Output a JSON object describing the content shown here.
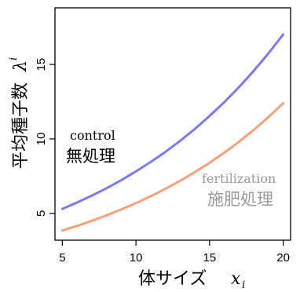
{
  "chart_data": {
    "type": "line",
    "xlabel": "体サイズ",
    "xlabel_var": "x",
    "xlabel_sub": "i",
    "ylabel": "平均種子数",
    "ylabel_var": "λ",
    "ylabel_sub": "i",
    "xlim": [
      4.5,
      20.5
    ],
    "ylim": [
      3.2,
      18.8
    ],
    "xticks": [
      5,
      10,
      15,
      20
    ],
    "xtick_labels": [
      "5",
      "10",
      "15",
      "20"
    ],
    "yticks": [
      5,
      10,
      15
    ],
    "ytick_labels": [
      "5",
      "10",
      "15"
    ],
    "grid": false,
    "series": [
      {
        "name": "control",
        "name_jp": "無処理",
        "color": "#7b7bf0",
        "x": [
          5,
          6,
          7,
          8,
          9,
          10,
          11,
          12,
          13,
          14,
          15,
          16,
          17,
          18,
          19,
          20
        ],
        "y": [
          5.3,
          5.73,
          6.19,
          6.69,
          7.23,
          7.82,
          8.45,
          9.13,
          9.87,
          10.67,
          11.54,
          12.47,
          13.48,
          14.57,
          15.75,
          17.02
        ]
      },
      {
        "name": "fertilization",
        "name_jp": "施肥処理",
        "color": "#f7a07a",
        "x": [
          5,
          6,
          7,
          8,
          9,
          10,
          11,
          12,
          13,
          14,
          15,
          16,
          17,
          18,
          19,
          20
        ],
        "y": [
          3.85,
          4.16,
          4.5,
          4.87,
          5.26,
          5.69,
          6.15,
          6.65,
          7.19,
          7.77,
          8.4,
          9.08,
          9.81,
          10.61,
          11.47,
          12.4
        ]
      }
    ],
    "annotations": [
      {
        "text": "control",
        "color": "#000000"
      },
      {
        "text": "無処理",
        "color": "#000000"
      },
      {
        "text": "fertilization",
        "color": "#999999"
      },
      {
        "text": "施肥処理",
        "color": "#999999"
      }
    ]
  }
}
